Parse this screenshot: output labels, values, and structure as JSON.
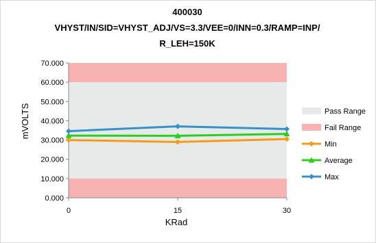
{
  "chart_data": {
    "type": "line",
    "title_lines": [
      "400030",
      "VHYST/IN/SID=VHYST_ADJ/VS=3.3/VEE=0/INN=0.3/RAMP=INP/",
      "R_LEH=150K"
    ],
    "xlabel": "KRad",
    "ylabel": "mVOLTS",
    "x": [
      0,
      15,
      30
    ],
    "x_ticks": [
      "0",
      "15",
      "30"
    ],
    "ylim": [
      0,
      70
    ],
    "y_ticks": [
      "0.000",
      "10.000",
      "20.000",
      "30.000",
      "40.000",
      "50.000",
      "60.000",
      "70.000"
    ],
    "grid": false,
    "legend_position": "right",
    "bands": [
      {
        "name": "Pass Range",
        "from": 10,
        "to": 60,
        "color": "#e6ebe9"
      },
      {
        "name": "Fail Range",
        "from": 0,
        "to": 10,
        "color": "#f9b2b2"
      },
      {
        "name": "Fail Range",
        "from": 60,
        "to": 70,
        "color": "#f9b2b2"
      }
    ],
    "series": [
      {
        "name": "Min",
        "values": [
          30.0,
          29.0,
          30.5
        ],
        "color": "#f59a1b",
        "marker": "diamond"
      },
      {
        "name": "Average",
        "values": [
          32.3,
          32.2,
          33.2
        ],
        "color": "#2ecc1f",
        "marker": "triangle"
      },
      {
        "name": "Max",
        "values": [
          34.6,
          37.1,
          35.7
        ],
        "color": "#3b8fc9",
        "marker": "diamond"
      }
    ],
    "legend": [
      {
        "name": "Pass Range",
        "kind": "swatch",
        "color": "#e6ebe9"
      },
      {
        "name": "Fail Range",
        "kind": "swatch",
        "color": "#f9b2b2"
      },
      {
        "name": "Min",
        "kind": "line",
        "color": "#f59a1b",
        "marker": "diamond"
      },
      {
        "name": "Average",
        "kind": "line",
        "color": "#2ecc1f",
        "marker": "triangle"
      },
      {
        "name": "Max",
        "kind": "line",
        "color": "#3b8fc9",
        "marker": "diamond"
      }
    ]
  }
}
